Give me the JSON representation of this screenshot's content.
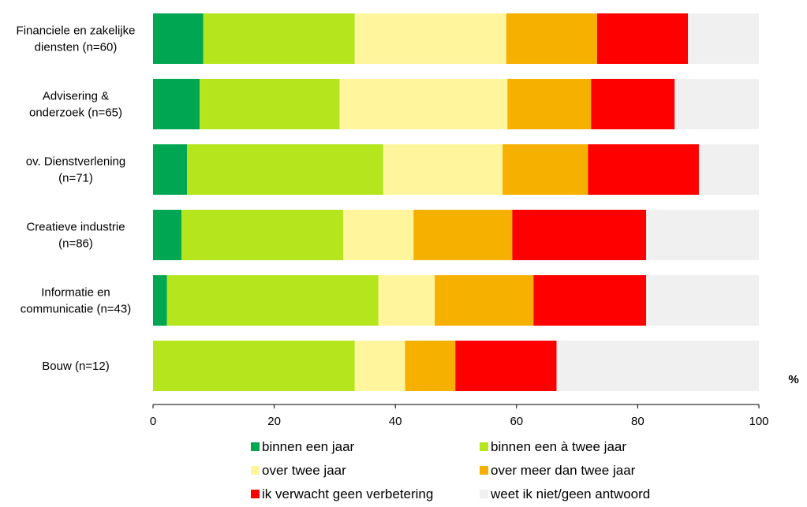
{
  "chart_data": {
    "type": "bar",
    "orientation": "horizontal",
    "stacked": true,
    "categories": [
      [
        "Financiele en zakelijke",
        "diensten (n=60)"
      ],
      [
        "Advisering &",
        "onderzoek (n=65)"
      ],
      [
        "ov. Dienstverlening",
        "(n=71)"
      ],
      [
        "Creatieve industrie",
        "(n=86)"
      ],
      [
        "Informatie en",
        "communicatie (n=43)"
      ],
      [
        "Bouw (n=12)"
      ]
    ],
    "series": [
      {
        "name": "binnen een jaar",
        "color": "#00a651",
        "values": [
          8.3,
          7.7,
          5.6,
          4.7,
          2.3,
          0
        ]
      },
      {
        "name": "binnen een à twee jaar",
        "color": "#b5e61d",
        "values": [
          25.0,
          23.1,
          32.4,
          26.7,
          34.9,
          33.3
        ]
      },
      {
        "name": "over twee jaar",
        "color": "#fff59d",
        "values": [
          25.0,
          27.7,
          19.7,
          11.6,
          9.3,
          8.3
        ]
      },
      {
        "name": "over meer dan twee jaar",
        "color": "#f5b000",
        "values": [
          15.0,
          13.8,
          14.1,
          16.3,
          16.3,
          8.3
        ]
      },
      {
        "name": "ik verwacht geen verbetering",
        "color": "#ff0000",
        "values": [
          15.0,
          13.8,
          18.3,
          22.1,
          18.6,
          16.7
        ]
      },
      {
        "name": "weet ik niet/geen antwoord",
        "color": "#f0f0f0",
        "values": [
          11.7,
          13.9,
          9.9,
          18.6,
          18.6,
          33.4
        ]
      }
    ],
    "xlim": [
      0,
      100
    ],
    "xticks": [
      0,
      20,
      40,
      60,
      80,
      100
    ],
    "unit_label": "%",
    "grid": false,
    "legend_position": "bottom"
  }
}
